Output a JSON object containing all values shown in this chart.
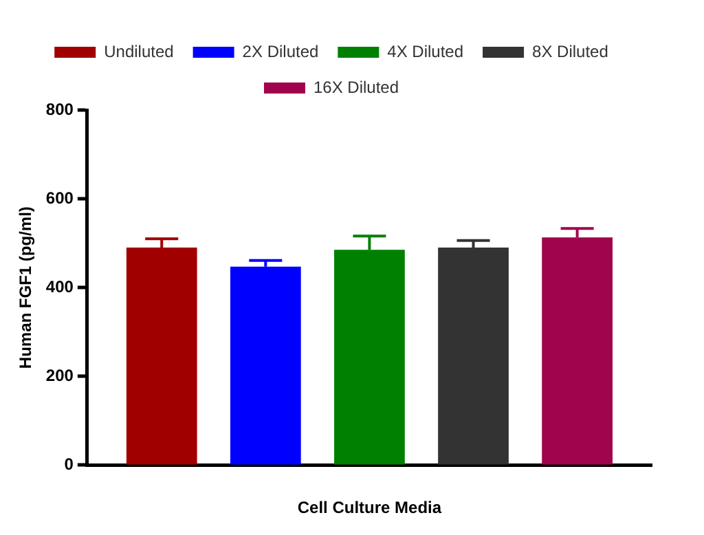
{
  "chart_data": {
    "type": "bar",
    "xlabel": "Cell Culture Media",
    "ylabel": "Human FGF1 (pg/ml)",
    "categories": [
      null
    ],
    "series": [
      {
        "name": "Undiluted",
        "color": "#a00000",
        "values": [
          490
        ],
        "errors": [
          [
            490,
            510
          ]
        ]
      },
      {
        "name": "2X Diluted",
        "color": "#0000ff",
        "values": [
          447
        ],
        "errors": [
          [
            447,
            461
          ]
        ]
      },
      {
        "name": "4X Diluted",
        "color": "#008000",
        "values": [
          485
        ],
        "errors": [
          [
            485,
            516
          ]
        ]
      },
      {
        "name": "8X Diluted",
        "color": "#333333",
        "values": [
          490
        ],
        "errors": [
          [
            490,
            506
          ]
        ]
      },
      {
        "name": "16X Diluted",
        "color": "#a0044c",
        "values": [
          513
        ],
        "errors": [
          [
            513,
            533
          ]
        ]
      }
    ],
    "ylim": [
      0,
      800
    ],
    "yticks": [
      0,
      200,
      400,
      600,
      800
    ],
    "grid": false,
    "legend": "top"
  }
}
